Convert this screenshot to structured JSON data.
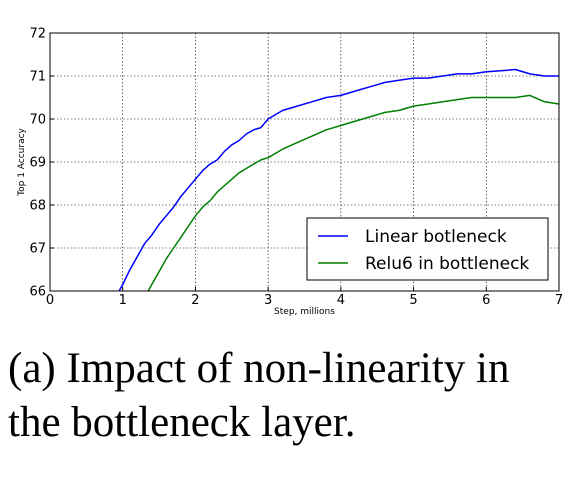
{
  "chart_data": {
    "type": "line",
    "xlabel": "Step, millions",
    "ylabel": "Top 1 Accuracy",
    "xlim": [
      0,
      7
    ],
    "ylim": [
      66,
      72
    ],
    "xticks": [
      "0",
      "1",
      "2",
      "3",
      "4",
      "5",
      "6",
      "7"
    ],
    "yticks": [
      "66",
      "67",
      "68",
      "69",
      "70",
      "71",
      "72"
    ],
    "grid": true,
    "legend_position": "lower-right",
    "series": [
      {
        "name": "Linear botleneck",
        "color": "#0000ff",
        "x": [
          0.95,
          1.0,
          1.1,
          1.2,
          1.3,
          1.4,
          1.5,
          1.6,
          1.7,
          1.8,
          1.9,
          2.0,
          2.1,
          2.2,
          2.3,
          2.4,
          2.5,
          2.6,
          2.7,
          2.8,
          2.9,
          3.0,
          3.2,
          3.4,
          3.6,
          3.8,
          4.0,
          4.2,
          4.4,
          4.6,
          4.8,
          5.0,
          5.2,
          5.4,
          5.6,
          5.8,
          6.0,
          6.2,
          6.4,
          6.6,
          6.8,
          7.0
        ],
        "y": [
          66.0,
          66.15,
          66.5,
          66.8,
          67.1,
          67.3,
          67.55,
          67.75,
          67.95,
          68.2,
          68.4,
          68.6,
          68.8,
          68.95,
          69.05,
          69.25,
          69.4,
          69.5,
          69.65,
          69.75,
          69.8,
          70.0,
          70.2,
          70.3,
          70.4,
          70.5,
          70.55,
          70.65,
          70.75,
          70.85,
          70.9,
          70.95,
          70.95,
          71.0,
          71.05,
          71.05,
          71.1,
          71.12,
          71.15,
          71.05,
          71.0,
          71.0
        ]
      },
      {
        "name": "Relu6 in bottleneck",
        "color": "#008000",
        "x": [
          1.35,
          1.4,
          1.5,
          1.6,
          1.7,
          1.8,
          1.9,
          2.0,
          2.1,
          2.2,
          2.3,
          2.4,
          2.5,
          2.6,
          2.7,
          2.8,
          2.9,
          3.0,
          3.2,
          3.4,
          3.6,
          3.8,
          4.0,
          4.2,
          4.4,
          4.6,
          4.8,
          5.0,
          5.2,
          5.4,
          5.6,
          5.8,
          6.0,
          6.2,
          6.4,
          6.6,
          6.8,
          7.0
        ],
        "y": [
          66.0,
          66.15,
          66.45,
          66.75,
          67.0,
          67.25,
          67.5,
          67.75,
          67.95,
          68.1,
          68.3,
          68.45,
          68.6,
          68.75,
          68.85,
          68.95,
          69.05,
          69.1,
          69.3,
          69.45,
          69.6,
          69.75,
          69.85,
          69.95,
          70.05,
          70.15,
          70.2,
          70.3,
          70.35,
          70.4,
          70.45,
          70.5,
          70.5,
          70.5,
          70.5,
          70.55,
          70.4,
          70.35
        ]
      }
    ]
  },
  "caption": {
    "line1": "(a) Impact of non-linearity in",
    "line2": "the bottleneck layer."
  }
}
